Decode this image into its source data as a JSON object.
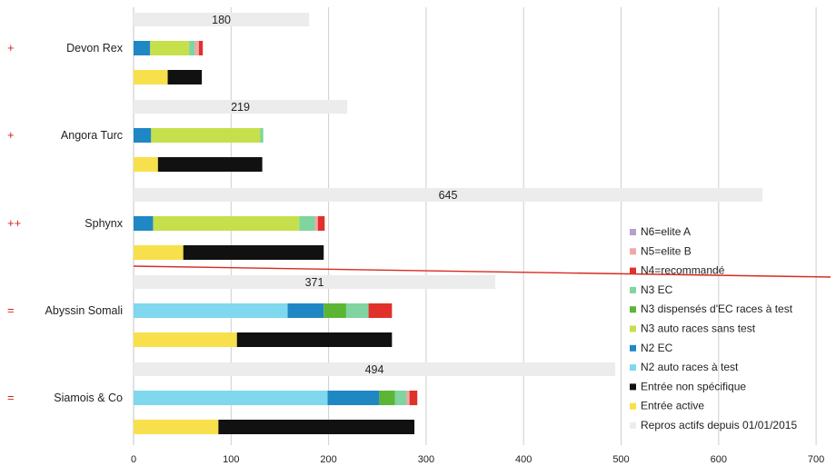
{
  "chart_data": {
    "type": "bar",
    "orientation": "horizontal",
    "stacked": true,
    "xlim": [
      0,
      700
    ],
    "x_ticks": [
      "0",
      "100",
      "200",
      "300",
      "400",
      "500",
      "600",
      "700"
    ],
    "grid": true,
    "legend_position": "right",
    "series": [
      {
        "name": "N6=elite A",
        "color": "#b3a2c7"
      },
      {
        "name": "N5=elite B",
        "color": "#f4a6a6"
      },
      {
        "name": "N4=recommandé",
        "color": "#e0312a"
      },
      {
        "name": "N3 EC",
        "color": "#7fd4a0"
      },
      {
        "name": "N3 dispensés d'EC races à test",
        "color": "#5cb534"
      },
      {
        "name": "N3 auto races sans test",
        "color": "#c5e04a"
      },
      {
        "name": "N2 EC",
        "color": "#1f88c4"
      },
      {
        "name": "N2 auto races à test",
        "color": "#7fd8ee"
      },
      {
        "name": "Entrée non spécifique",
        "color": "#111111"
      },
      {
        "name": "Entrée active",
        "color": "#f7e04b"
      },
      {
        "name": "Repros actifs depuis 01/01/2015",
        "color": "#ececec"
      }
    ],
    "groups": [
      {
        "category": "Devon Rex",
        "marker": "+",
        "total_label": "180",
        "repros": 180,
        "levels": [
          {
            "s": "N2 EC",
            "v": 17
          },
          {
            "s": "N3 auto races sans test",
            "v": 40
          },
          {
            "s": "N3 EC",
            "v": 6
          },
          {
            "s": "N5=elite B",
            "v": 4
          },
          {
            "s": "N4=recommandé",
            "v": 4
          }
        ],
        "entries": [
          {
            "s": "Entrée active",
            "v": 35
          },
          {
            "s": "Entrée non spécifique",
            "v": 35
          }
        ]
      },
      {
        "category": "Angora Turc",
        "marker": "+",
        "total_label": "219",
        "repros": 219,
        "levels": [
          {
            "s": "N2 EC",
            "v": 18
          },
          {
            "s": "N3 auto races sans test",
            "v": 112
          },
          {
            "s": "N3 EC",
            "v": 3
          }
        ],
        "entries": [
          {
            "s": "Entrée active",
            "v": 25
          },
          {
            "s": "Entrée non spécifique",
            "v": 107
          }
        ]
      },
      {
        "category": "Sphynx",
        "marker": "++",
        "total_label": "645",
        "repros": 645,
        "levels": [
          {
            "s": "N2 EC",
            "v": 20
          },
          {
            "s": "N3 auto races sans test",
            "v": 150
          },
          {
            "s": "N3 EC",
            "v": 16
          },
          {
            "s": "N5=elite B",
            "v": 3
          },
          {
            "s": "N4=recommandé",
            "v": 7
          }
        ],
        "entries": [
          {
            "s": "Entrée active",
            "v": 51
          },
          {
            "s": "Entrée non spécifique",
            "v": 144
          }
        ]
      },
      {
        "category": "Abyssin Somali",
        "marker": "=",
        "total_label": "371",
        "repros": 371,
        "levels": [
          {
            "s": "N2 auto races à test",
            "v": 158
          },
          {
            "s": "N2 EC",
            "v": 37
          },
          {
            "s": "N3 dispensés d'EC races à test",
            "v": 23
          },
          {
            "s": "N3 EC",
            "v": 23
          },
          {
            "s": "N4=recommandé",
            "v": 24
          }
        ],
        "entries": [
          {
            "s": "Entrée active",
            "v": 106
          },
          {
            "s": "Entrée non spécifique",
            "v": 159
          }
        ]
      },
      {
        "category": "Siamois & Co",
        "marker": "=",
        "total_label": "494",
        "repros": 494,
        "levels": [
          {
            "s": "N2 auto races à test",
            "v": 199
          },
          {
            "s": "N2 EC",
            "v": 53
          },
          {
            "s": "N3 dispensés d'EC races à test",
            "v": 16
          },
          {
            "s": "N3 EC",
            "v": 12
          },
          {
            "s": "N5=elite B",
            "v": 3
          },
          {
            "s": "N4=recommandé",
            "v": 8
          }
        ],
        "entries": [
          {
            "s": "Entrée active",
            "v": 87
          },
          {
            "s": "Entrée non spécifique",
            "v": 201
          }
        ]
      }
    ]
  }
}
